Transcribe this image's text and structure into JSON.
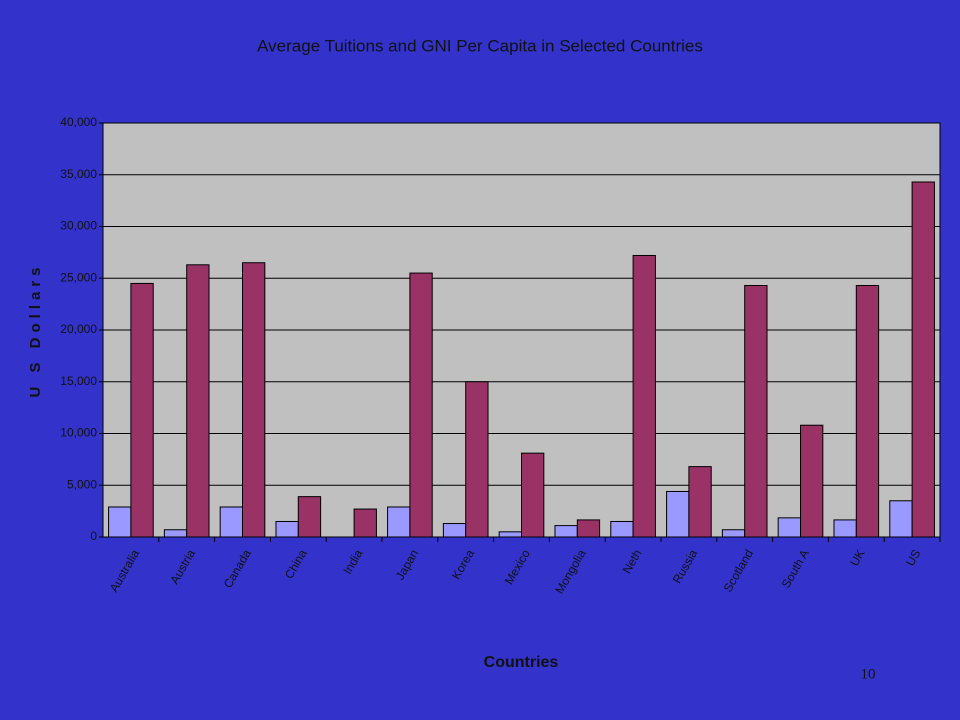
{
  "chart_data": {
    "type": "bar",
    "title": "Average Tuitions and GNI Per Capita in Selected Countries",
    "y_label": "U S Dollars",
    "x_label": "Countries",
    "page_number": "10",
    "categories": [
      "Australia",
      "Austria",
      "Canada",
      "China",
      "India",
      "Japan",
      "Korea",
      "Mexico",
      "Mongolia",
      "Neth",
      "Russia",
      "Scotland",
      "South A",
      "UK",
      "US"
    ],
    "series": [
      {
        "color": "#9999ff",
        "values": [
          2900,
          700,
          2900,
          1500,
          0,
          2900,
          1300,
          500,
          1100,
          1500,
          4400,
          700,
          1850,
          1650,
          3500
        ]
      },
      {
        "color": "#993366",
        "values": [
          24500,
          26300,
          26500,
          3900,
          2700,
          25500,
          15000,
          8100,
          1650,
          27200,
          6800,
          24300,
          10800,
          24300,
          34300
        ]
      }
    ],
    "ylim": [
      0,
      40000
    ],
    "yticks": [
      0,
      {
        "value": 5000,
        "label": "5,000"
      },
      {
        "value": 10000,
        "label": "10,000"
      },
      {
        "value": 15000,
        "label": "15,000"
      },
      {
        "value": 20000,
        "label": "20,000"
      },
      {
        "value": 25000,
        "label": "25,000"
      },
      {
        "value": 30000,
        "label": "30,000"
      },
      {
        "value": 35000,
        "label": "35,000"
      },
      {
        "value": 40000,
        "label": "40,000"
      }
    ],
    "grid": true
  }
}
